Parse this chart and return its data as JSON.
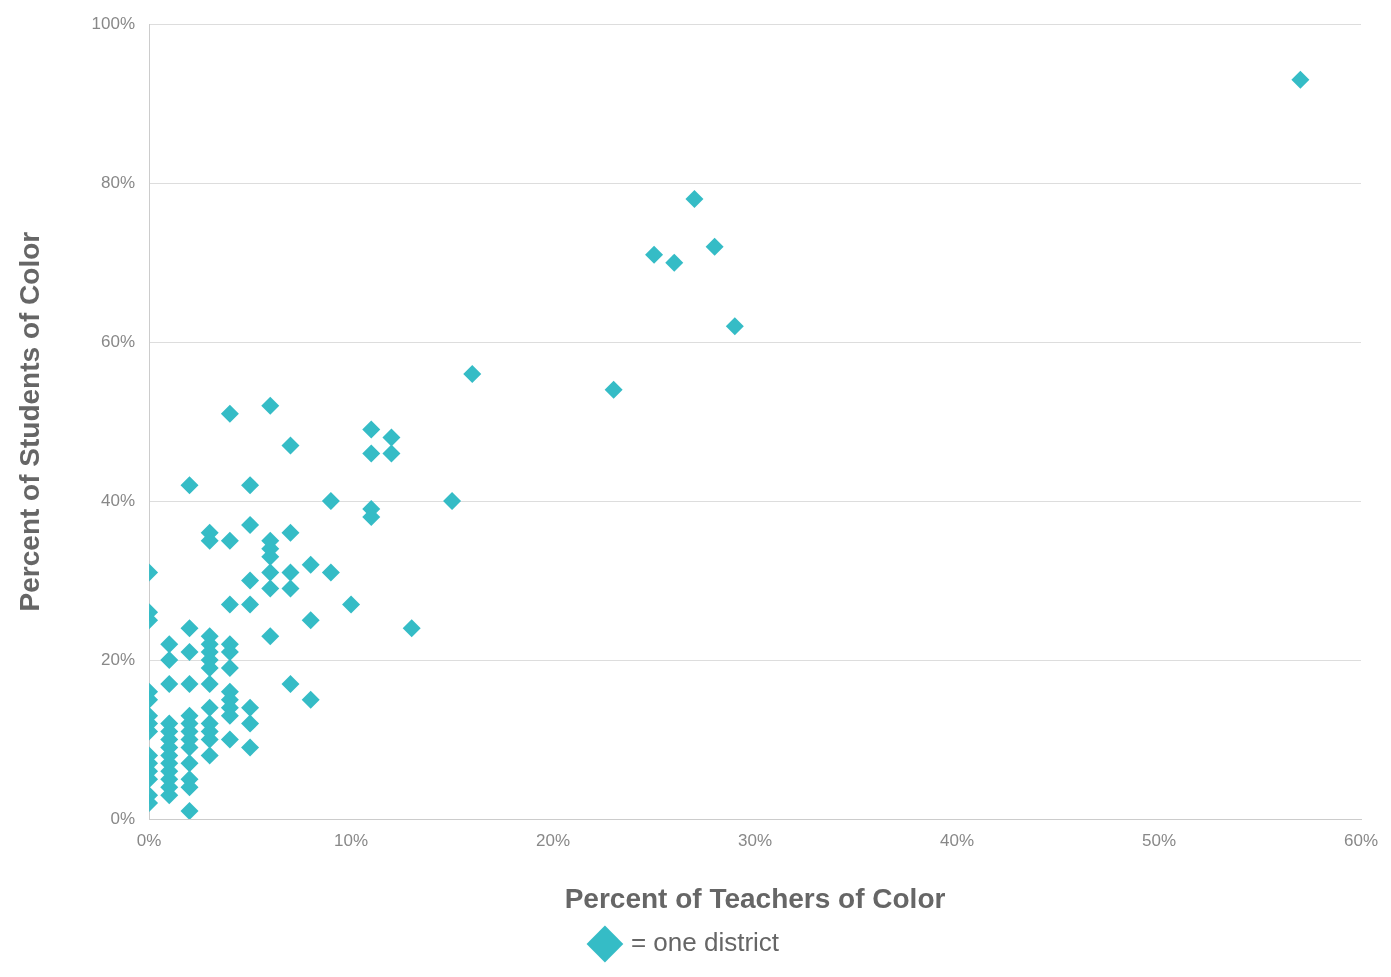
{
  "chart_data": {
    "type": "scatter",
    "xlabel": "Percent of Teachers of Color",
    "ylabel": "Percent of Students of Color",
    "xlim": [
      0,
      60
    ],
    "xticks": [
      {
        "value": 0,
        "label": "0%"
      },
      {
        "value": 10,
        "label": "10%"
      },
      {
        "value": 20,
        "label": "20%"
      },
      {
        "value": 30,
        "label": "30%"
      },
      {
        "value": 40,
        "label": "40%"
      },
      {
        "value": 50,
        "label": "50%"
      },
      {
        "value": 60,
        "label": "60%"
      }
    ],
    "ylim": [
      0,
      100
    ],
    "yticks": [
      {
        "value": 0,
        "label": "0%"
      },
      {
        "value": 20,
        "label": "20%"
      },
      {
        "value": 40,
        "label": "40%"
      },
      {
        "value": 60,
        "label": "60%"
      },
      {
        "value": 80,
        "label": "80%"
      },
      {
        "value": 100,
        "label": "100%"
      }
    ],
    "grid": "y",
    "legend": "bottom",
    "marker": "diamond",
    "series": [
      {
        "name": "= one district",
        "color": "#35bcc6",
        "x": [
          0,
          0,
          0,
          0,
          0,
          0,
          0,
          0,
          0,
          0,
          0,
          0,
          0,
          0,
          1,
          1,
          1,
          1,
          1,
          1,
          1,
          1,
          1,
          1,
          1,
          1,
          1,
          2,
          2,
          2,
          2,
          2,
          2,
          2,
          2,
          2,
          2,
          2,
          2,
          2,
          3,
          3,
          3,
          3,
          3,
          3,
          3,
          3,
          3,
          3,
          3,
          3,
          3,
          4,
          4,
          4,
          4,
          4,
          4,
          4,
          4,
          4,
          4,
          4,
          5,
          5,
          5,
          5,
          5,
          5,
          5,
          6,
          6,
          6,
          6,
          6,
          6,
          6,
          7,
          7,
          7,
          7,
          7,
          8,
          8,
          8,
          9,
          9,
          10,
          11,
          11,
          11,
          11,
          12,
          12,
          13,
          15,
          16,
          23,
          25,
          26,
          27,
          28,
          29,
          57
        ],
        "values": [
          31,
          26,
          25,
          16,
          15,
          13,
          12,
          11,
          8,
          7,
          6,
          5,
          3,
          2,
          22,
          20,
          17,
          12,
          11,
          10,
          9,
          8,
          7,
          6,
          5,
          4,
          3,
          42,
          24,
          21,
          17,
          13,
          12,
          11,
          10,
          9,
          7,
          5,
          4,
          1,
          36,
          35,
          23,
          22,
          21,
          20,
          19,
          17,
          14,
          12,
          11,
          10,
          8,
          51,
          35,
          27,
          22,
          21,
          19,
          16,
          15,
          14,
          13,
          10,
          42,
          37,
          30,
          27,
          14,
          12,
          9,
          52,
          35,
          34,
          33,
          31,
          29,
          23,
          47,
          36,
          31,
          29,
          17,
          32,
          25,
          15,
          40,
          31,
          27,
          49,
          46,
          39,
          38,
          48,
          46,
          24,
          40,
          56,
          54,
          71,
          70,
          78,
          72,
          62,
          93
        ]
      }
    ]
  }
}
